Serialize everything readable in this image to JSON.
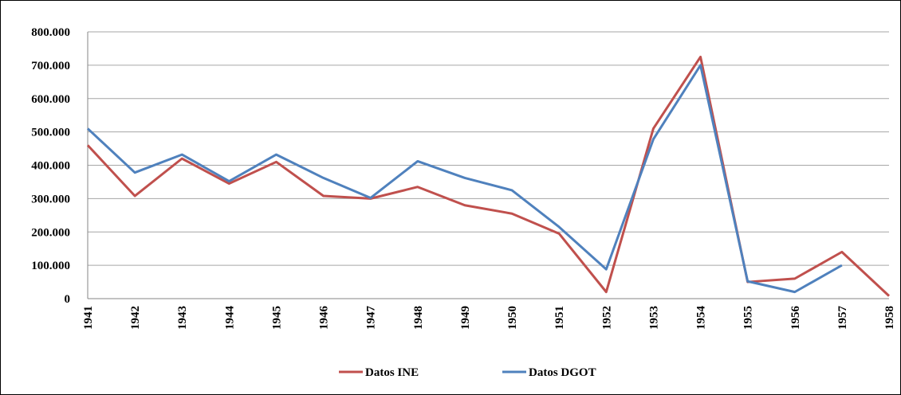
{
  "chart_data": {
    "type": "line",
    "categories": [
      "1941",
      "1942",
      "1943",
      "1944",
      "1945",
      "1946",
      "1947",
      "1948",
      "1949",
      "1950",
      "1951",
      "1952",
      "1953",
      "1954",
      "1955",
      "1956",
      "1957",
      "1958"
    ],
    "series": [
      {
        "name": "Datos INE",
        "color": "#c0504d",
        "values": [
          460000,
          308000,
          420000,
          345000,
          410000,
          308000,
          300000,
          335000,
          280000,
          255000,
          195000,
          20000,
          510000,
          725000,
          50000,
          60000,
          140000,
          8000
        ]
      },
      {
        "name": "Datos DGOT",
        "color": "#4f81bd",
        "values": [
          510000,
          378000,
          432000,
          352000,
          432000,
          362000,
          302000,
          412000,
          362000,
          325000,
          215000,
          88000,
          478000,
          700000,
          52000,
          20000,
          100000,
          null
        ]
      }
    ],
    "ylim": [
      0,
      800000
    ],
    "yticks": [
      0,
      {
        "value": 100000,
        "label": "100.000"
      },
      {
        "value": 200000,
        "label": "200.000"
      },
      {
        "value": 300000,
        "label": "300.000"
      },
      {
        "value": 400000,
        "label": "400.000"
      },
      {
        "value": 500000,
        "label": "500.000"
      },
      {
        "value": 600000,
        "label": "600.000"
      },
      {
        "value": 700000,
        "label": "700.000"
      },
      {
        "value": 800000,
        "label": "800.000"
      }
    ],
    "grid": true,
    "legend": "bottom"
  }
}
